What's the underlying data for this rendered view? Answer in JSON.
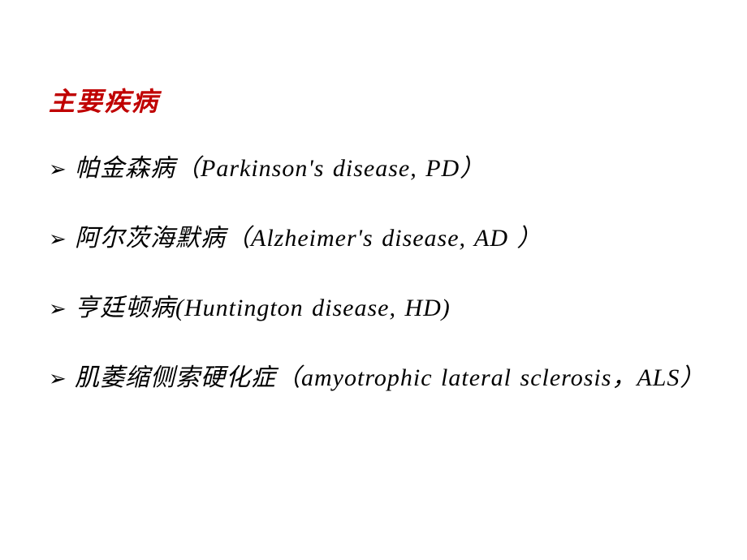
{
  "slide": {
    "heading": "主要疾病",
    "heading_color": "#c00000",
    "text_color": "#000000",
    "background_color": "#ffffff",
    "font_family": "SimSun",
    "heading_fontsize": 32,
    "body_fontsize": 30,
    "bullet_marker": "➢",
    "bullets": [
      {
        "text": "帕金森病（Parkinson's disease, PD）"
      },
      {
        "text": "阿尔茨海默病（Alzheimer's disease, AD ）"
      },
      {
        "text": "亨廷顿病(Huntington disease, HD)"
      },
      {
        "text": "肌萎缩侧索硬化症（amyotrophic lateral sclerosis，ALS）"
      }
    ]
  }
}
